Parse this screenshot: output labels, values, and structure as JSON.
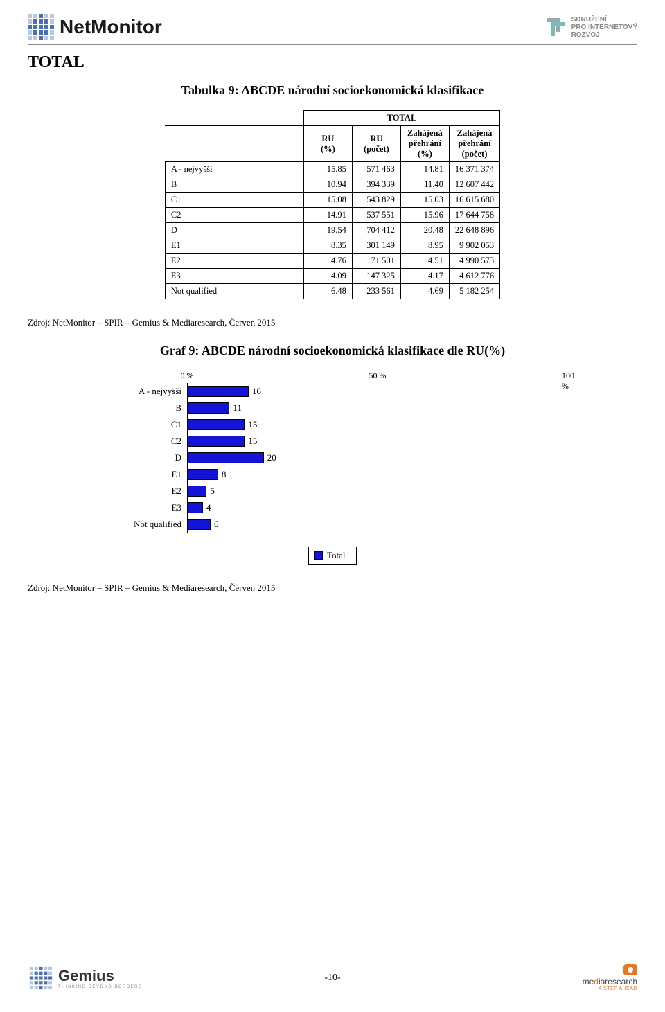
{
  "header": {
    "brand": "NetMonitor",
    "spir_line1": "SDRUŽENÍ",
    "spir_line2": "PRO INTERNETOVÝ",
    "spir_line3": "ROZVOJ"
  },
  "section_label": "TOTAL",
  "table": {
    "title": "Tabulka 9: ABCDE národní socioekonomická klasifikace",
    "super_header": "TOTAL",
    "columns": [
      "RU (%)",
      "RU (počet)",
      "Zahájená přehrání (%)",
      "Zahájená přehrání (počet)"
    ],
    "col_parts": {
      "ru_pct_1": "RU",
      "ru_pct_2": "(%)",
      "ru_cnt_1": "RU",
      "ru_cnt_2": "(počet)",
      "zp_pct_1": "Zahájená",
      "zp_pct_2": "přehrání",
      "zp_pct_3": "(%)",
      "zp_cnt_1": "Zahájená",
      "zp_cnt_2": "přehrání",
      "zp_cnt_3": "(počet)"
    },
    "rows": [
      {
        "label": "A - nejvyšší",
        "ru_pct": "15.85",
        "ru_cnt": "571 463",
        "zp_pct": "14.81",
        "zp_cnt": "16 371 374"
      },
      {
        "label": "B",
        "ru_pct": "10.94",
        "ru_cnt": "394 339",
        "zp_pct": "11.40",
        "zp_cnt": "12 607 442"
      },
      {
        "label": "C1",
        "ru_pct": "15.08",
        "ru_cnt": "543 829",
        "zp_pct": "15.03",
        "zp_cnt": "16 615 680"
      },
      {
        "label": "C2",
        "ru_pct": "14.91",
        "ru_cnt": "537 551",
        "zp_pct": "15.96",
        "zp_cnt": "17 644 758"
      },
      {
        "label": "D",
        "ru_pct": "19.54",
        "ru_cnt": "704 412",
        "zp_pct": "20.48",
        "zp_cnt": "22 648 896"
      },
      {
        "label": "E1",
        "ru_pct": "8.35",
        "ru_cnt": "301 149",
        "zp_pct": "8.95",
        "zp_cnt": "9 902 053"
      },
      {
        "label": "E2",
        "ru_pct": "4.76",
        "ru_cnt": "171 501",
        "zp_pct": "4.51",
        "zp_cnt": "4 990 573"
      },
      {
        "label": "E3",
        "ru_pct": "4.09",
        "ru_cnt": "147 325",
        "zp_pct": "4.17",
        "zp_cnt": "4 612 776"
      },
      {
        "label": "Not qualified",
        "ru_pct": "6.48",
        "ru_cnt": "233 561",
        "zp_pct": "4.69",
        "zp_cnt": "5 182 254"
      }
    ]
  },
  "source": "Zdroj: NetMonitor – SPIR – Gemius & Mediaresearch, Červen 2015",
  "chart": {
    "title": "Graf 9: ABCDE národní socioekonomická klasifikace dle RU(%)",
    "type": "bar-horizontal",
    "xlim": [
      0,
      100
    ],
    "xtick_positions": [
      0,
      50,
      100
    ],
    "xtick_labels": [
      "0 %",
      "50 %",
      "100 %"
    ],
    "bar_color": "#1414d7",
    "bar_border": "#000000",
    "background_color": "#ffffff",
    "categories": [
      "A - nejvyšší",
      "B",
      "C1",
      "C2",
      "D",
      "E1",
      "E2",
      "E3",
      "Not qualified"
    ],
    "values": [
      16,
      11,
      15,
      15,
      20,
      8,
      5,
      4,
      6
    ],
    "legend_label": "Total"
  },
  "footer": {
    "gemius": "Gemius",
    "gemius_sub": "THINKING BEYOND BORDERS",
    "page_number": "-10-",
    "mr_text_1": "me",
    "mr_text_hl": "d",
    "mr_text_2": "iaresearch",
    "mr_sub": "A STEP AHEAD"
  }
}
